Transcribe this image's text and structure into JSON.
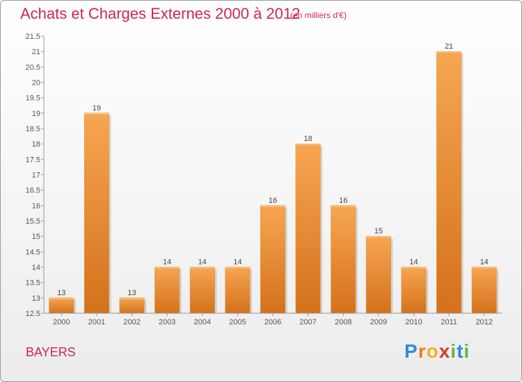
{
  "header": {
    "title": "Achats et Charges Externes 2000 à 2012",
    "subtitle": "(en milliers d'€)"
  },
  "footer": {
    "town": "BAYERS",
    "logo_letters": [
      "P",
      "r",
      "o",
      "x",
      "i",
      "t",
      "i"
    ],
    "logo_colors": [
      "#2e8bd6",
      "#ee7d1a",
      "#f4b31a",
      "#d73a2f",
      "#6cb33f",
      "#2e8bd6",
      "#6cb33f"
    ]
  },
  "chart_data": {
    "type": "bar",
    "title": "Achats et Charges Externes 2000 à 2012",
    "subtitle": "(en milliers d'€)",
    "categories": [
      "2000",
      "2001",
      "2002",
      "2003",
      "2004",
      "2005",
      "2006",
      "2007",
      "2008",
      "2009",
      "2010",
      "2011",
      "2012"
    ],
    "values": [
      13,
      19,
      13,
      14,
      14,
      14,
      16,
      18,
      16,
      15,
      14,
      21,
      14
    ],
    "ylim": [
      12.5,
      21.5
    ],
    "yticks": [
      "12.5",
      "13",
      "13.5",
      "14",
      "14.5",
      "15",
      "15.5",
      "16",
      "16.5",
      "17",
      "17.5",
      "18",
      "18.5",
      "19",
      "19.5",
      "20",
      "20.5",
      "21",
      "21.5"
    ],
    "grid": false,
    "bar_color": "#f49a3e",
    "bar_color_dark": "#d4711c"
  }
}
